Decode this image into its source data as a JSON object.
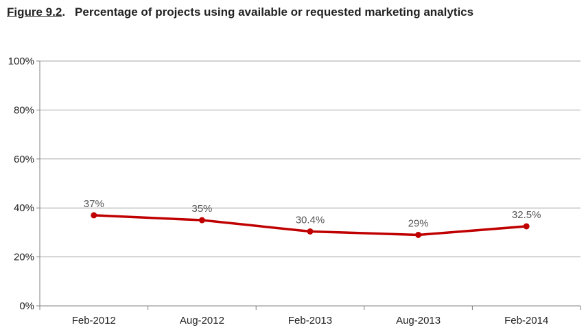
{
  "figure_label": "Figure 9.2",
  "figure_label_suffix": ".",
  "title": "Percentage of projects using available or requested marketing analytics",
  "colors": {
    "series": "#c00000",
    "grid": "#a6a6a6",
    "axis": "#808080"
  },
  "chart_data": {
    "type": "line",
    "title": "Percentage of projects using available or requested marketing analytics",
    "categories": [
      "Feb-2012",
      "Aug-2012",
      "Feb-2013",
      "Aug-2013",
      "Feb-2014"
    ],
    "series": [
      {
        "values": [
          37,
          35,
          30.4,
          29,
          32.5
        ],
        "data_labels": [
          "37%",
          "35%",
          "30.4%",
          "29%",
          "32.5%"
        ]
      }
    ],
    "ylim": [
      0,
      100
    ],
    "yticks": [
      0,
      20,
      40,
      60,
      80,
      100
    ],
    "ytick_labels": [
      "0%",
      "20%",
      "40%",
      "60%",
      "80%",
      "100%"
    ],
    "grid": true,
    "xlabel": "",
    "ylabel": ""
  }
}
